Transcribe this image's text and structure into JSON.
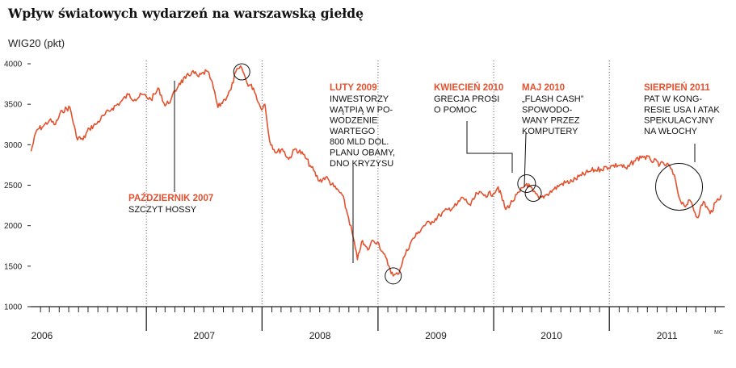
{
  "chart_data": {
    "type": "line",
    "title": "Wpływ światowych wydarzeń na warszawską giełdę",
    "ylabel": "WIG20 (pkt)",
    "ylim": [
      1000,
      4000
    ],
    "yticks": [
      1000,
      1500,
      2000,
      2500,
      3000,
      3500,
      4000
    ],
    "xlim": [
      "2006-01-01",
      "2011-12-31"
    ],
    "xticks": [
      "2006",
      "2007",
      "2008",
      "2009",
      "2010",
      "2011"
    ],
    "grid": "vertical-dotted",
    "series": [
      {
        "color": "#e4512f",
        "points": [
          [
            "2006-01-02",
            2920
          ],
          [
            "2006-01-20",
            3180
          ],
          [
            "2006-02-10",
            3230
          ],
          [
            "2006-03-01",
            3300
          ],
          [
            "2006-03-20",
            3250
          ],
          [
            "2006-04-10",
            3420
          ],
          [
            "2006-05-05",
            3460
          ],
          [
            "2006-05-25",
            3100
          ],
          [
            "2006-06-15",
            3060
          ],
          [
            "2006-07-05",
            3200
          ],
          [
            "2006-07-25",
            3250
          ],
          [
            "2006-08-20",
            3360
          ],
          [
            "2006-09-15",
            3450
          ],
          [
            "2006-10-10",
            3520
          ],
          [
            "2006-11-05",
            3620
          ],
          [
            "2006-11-25",
            3560
          ],
          [
            "2006-12-20",
            3620
          ],
          [
            "2007-01-15",
            3560
          ],
          [
            "2007-02-10",
            3690
          ],
          [
            "2007-03-01",
            3480
          ],
          [
            "2007-03-20",
            3560
          ],
          [
            "2007-04-15",
            3760
          ],
          [
            "2007-05-05",
            3820
          ],
          [
            "2007-05-25",
            3900
          ],
          [
            "2007-06-15",
            3840
          ],
          [
            "2007-07-10",
            3910
          ],
          [
            "2007-07-25",
            3800
          ],
          [
            "2007-08-15",
            3460
          ],
          [
            "2007-09-05",
            3560
          ],
          [
            "2007-09-25",
            3680
          ],
          [
            "2007-10-10",
            3900
          ],
          [
            "2007-10-29",
            3950
          ],
          [
            "2007-11-15",
            3760
          ],
          [
            "2007-12-05",
            3700
          ],
          [
            "2007-12-28",
            3450
          ],
          [
            "2008-01-10",
            3500
          ],
          [
            "2008-01-25",
            3050
          ],
          [
            "2008-02-15",
            2900
          ],
          [
            "2008-03-05",
            2950
          ],
          [
            "2008-03-25",
            2820
          ],
          [
            "2008-04-15",
            2950
          ],
          [
            "2008-05-10",
            2880
          ],
          [
            "2008-06-05",
            2720
          ],
          [
            "2008-06-30",
            2550
          ],
          [
            "2008-07-20",
            2600
          ],
          [
            "2008-08-15",
            2480
          ],
          [
            "2008-09-10",
            2380
          ],
          [
            "2008-09-30",
            2100
          ],
          [
            "2008-10-15",
            1850
          ],
          [
            "2008-10-28",
            1580
          ],
          [
            "2008-11-10",
            1800
          ],
          [
            "2008-11-30",
            1700
          ],
          [
            "2008-12-15",
            1820
          ],
          [
            "2008-12-31",
            1800
          ],
          [
            "2009-01-15",
            1680
          ],
          [
            "2009-02-05",
            1500
          ],
          [
            "2009-02-18",
            1380
          ],
          [
            "2009-03-05",
            1400
          ],
          [
            "2009-03-25",
            1620
          ],
          [
            "2009-04-15",
            1800
          ],
          [
            "2009-05-05",
            1900
          ],
          [
            "2009-05-25",
            2000
          ],
          [
            "2009-06-20",
            2050
          ],
          [
            "2009-07-15",
            2130
          ],
          [
            "2009-08-10",
            2200
          ],
          [
            "2009-09-05",
            2250
          ],
          [
            "2009-09-25",
            2350
          ],
          [
            "2009-10-20",
            2250
          ],
          [
            "2009-11-10",
            2400
          ],
          [
            "2009-12-05",
            2380
          ],
          [
            "2009-12-31",
            2400
          ],
          [
            "2010-01-15",
            2480
          ],
          [
            "2010-02-08",
            2200
          ],
          [
            "2010-03-01",
            2300
          ],
          [
            "2010-03-25",
            2420
          ],
          [
            "2010-04-15",
            2520
          ],
          [
            "2010-05-06",
            2420
          ],
          [
            "2010-05-25",
            2330
          ],
          [
            "2010-06-15",
            2380
          ],
          [
            "2010-07-10",
            2450
          ],
          [
            "2010-08-05",
            2520
          ],
          [
            "2010-09-05",
            2550
          ],
          [
            "2010-10-05",
            2620
          ],
          [
            "2010-11-05",
            2680
          ],
          [
            "2010-12-05",
            2700
          ],
          [
            "2011-01-10",
            2740
          ],
          [
            "2011-02-05",
            2750
          ],
          [
            "2011-02-25",
            2700
          ],
          [
            "2011-03-20",
            2800
          ],
          [
            "2011-04-15",
            2860
          ],
          [
            "2011-05-10",
            2820
          ],
          [
            "2011-06-10",
            2760
          ],
          [
            "2011-07-10",
            2740
          ],
          [
            "2011-07-29",
            2560
          ],
          [
            "2011-08-09",
            2350
          ],
          [
            "2011-08-25",
            2250
          ],
          [
            "2011-09-15",
            2300
          ],
          [
            "2011-10-05",
            2100
          ],
          [
            "2011-10-25",
            2300
          ],
          [
            "2011-11-15",
            2150
          ],
          [
            "2011-12-05",
            2300
          ],
          [
            "2011-12-20",
            2380
          ]
        ]
      }
    ],
    "annotations": [
      {
        "id": "oct2007",
        "heading": "PAŹDZIERNIK 2007",
        "lines": [
          "SZCZYT HOSSY"
        ],
        "date": "2007-10-29",
        "value": 3900
      },
      {
        "id": "feb2009",
        "heading": "LUTY 2009",
        "lines": [
          "INWESTORZY",
          "WĄTPIĄ W PO-",
          "WODZENIE",
          "WARTEGO",
          "800 MLD DOL.",
          "PLANU OBAMY,",
          "DNO KRYZYSU"
        ],
        "date": "2009-02-18",
        "value": 1380
      },
      {
        "id": "apr2010",
        "heading": "KWIECIEŃ 2010",
        "lines": [
          "GRECJA PROSI",
          "O POMOC"
        ],
        "date": "2010-04-15",
        "value": 2520
      },
      {
        "id": "may2010",
        "heading": "MAJ 2010",
        "lines": [
          "„FLASH CASH”",
          "SPOWODO-",
          "WANY PRZEZ",
          "KOMPUTERY"
        ],
        "date": "2010-05-06",
        "value": 2400
      },
      {
        "id": "aug2011",
        "heading": "SIERPIEŃ 2011",
        "lines": [
          "PAT W KONG-",
          "RESIE USA I ATAK",
          "SPEKULACYJNY",
          "NA WŁOCHY"
        ],
        "date": "2011-08-09",
        "value": 2480
      }
    ],
    "source": "MC"
  }
}
